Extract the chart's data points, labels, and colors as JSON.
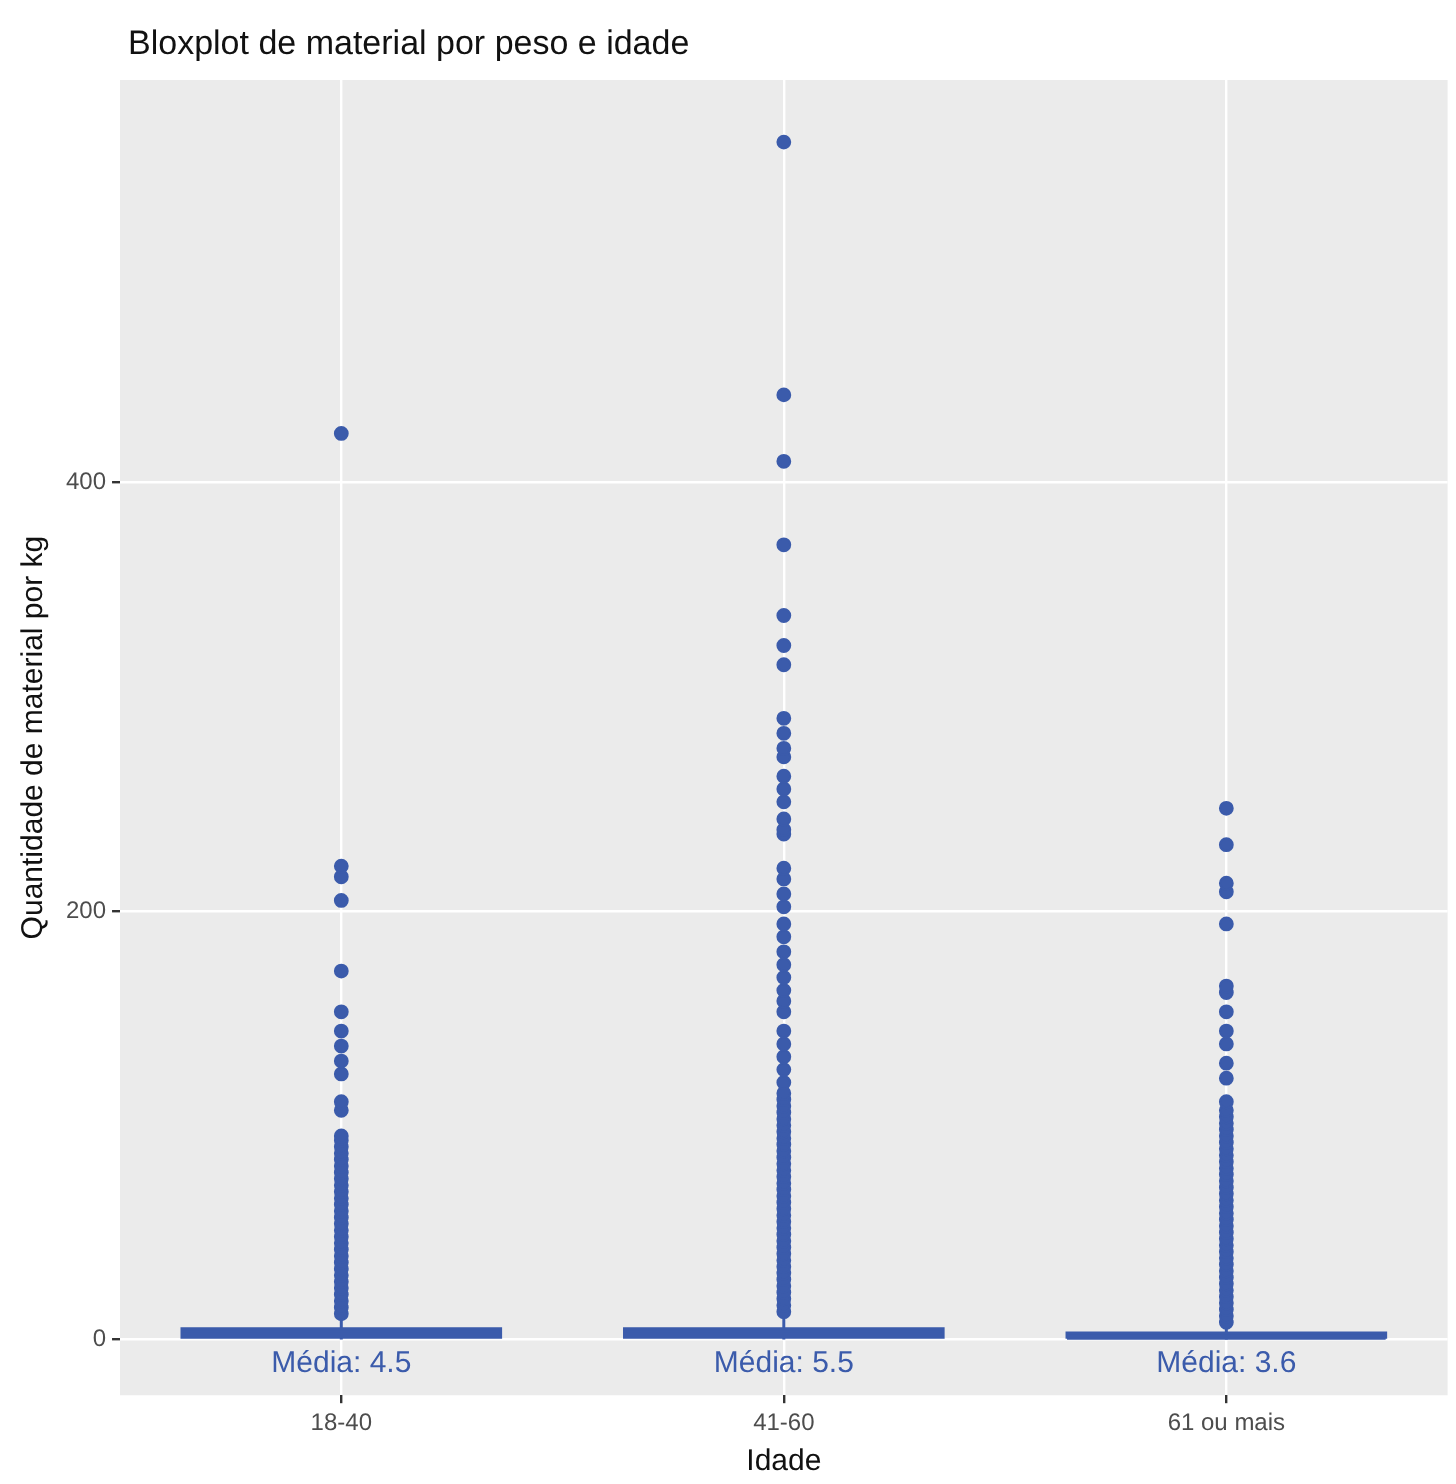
{
  "chart_data": {
    "type": "box",
    "title": "Bloxplot de material por peso e idade",
    "xlabel": "Idade",
    "ylabel": "Quantidade de material por kg",
    "categories": [
      "18-40",
      "41-60",
      "61 ou mais"
    ],
    "color": "#3b5bab",
    "boxes": [
      {
        "low": 0,
        "q1": 1,
        "median": 2,
        "q3": 5,
        "high": 10,
        "outliers": [
          12,
          15,
          18,
          21,
          24,
          27,
          30,
          33,
          36,
          39,
          42,
          45,
          48,
          51,
          54,
          57,
          60,
          63,
          66,
          69,
          72,
          75,
          78,
          81,
          84,
          87,
          90,
          93,
          95,
          107,
          111,
          124,
          130,
          137,
          144,
          153,
          172,
          205,
          216,
          221,
          423
        ]
      },
      {
        "low": 0,
        "q1": 1,
        "median": 2,
        "q3": 5,
        "high": 11,
        "outliers": [
          13,
          16,
          19,
          22,
          25,
          28,
          31,
          34,
          37,
          40,
          43,
          46,
          49,
          52,
          55,
          58,
          61,
          64,
          67,
          70,
          73,
          76,
          79,
          82,
          85,
          88,
          91,
          94,
          97,
          100,
          103,
          106,
          109,
          112,
          115,
          120,
          126,
          132,
          138,
          144,
          153,
          158,
          163,
          169,
          175,
          181,
          188,
          194,
          202,
          208,
          215,
          220,
          236,
          238,
          243,
          251,
          257,
          263,
          272,
          276,
          283,
          290,
          315,
          324,
          338,
          371,
          410,
          441,
          559
        ]
      },
      {
        "low": 0,
        "q1": 1,
        "median": 1,
        "q3": 3,
        "high": 6,
        "outliers": [
          8,
          11,
          14,
          17,
          20,
          23,
          26,
          29,
          32,
          35,
          38,
          41,
          44,
          47,
          50,
          53,
          56,
          59,
          62,
          65,
          68,
          71,
          74,
          77,
          80,
          83,
          86,
          89,
          92,
          95,
          98,
          101,
          104,
          107,
          111,
          122,
          129,
          138,
          144,
          153,
          162,
          165,
          194,
          209,
          213,
          231,
          248
        ]
      }
    ],
    "annotations": [
      "Média: 4.5",
      "Média: 5.5",
      "Média: 3.6"
    ],
    "ylim": [
      -26,
      588
    ],
    "yticks": [
      0,
      200,
      400
    ],
    "grid": true
  }
}
